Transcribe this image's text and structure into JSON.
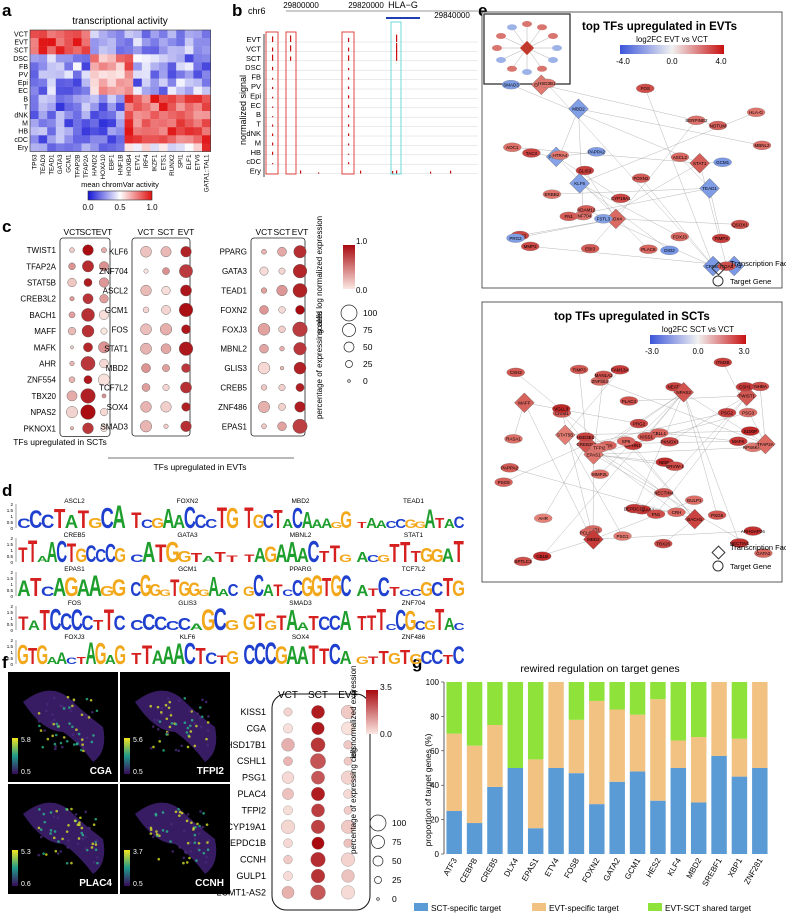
{
  "panel_letters": {
    "a": "a",
    "b": "b",
    "c": "c",
    "d": "d",
    "e": "e",
    "f": "f",
    "g": "g"
  },
  "panel_a": {
    "title": "transcriptional activity",
    "rows": [
      "VCT",
      "EVT",
      "SCT",
      "DSC",
      "FB",
      "PV",
      "Epi",
      "EC",
      "B",
      "T",
      "dNK",
      "M",
      "HB",
      "cDC",
      "Ery"
    ],
    "cols": [
      "TP63",
      "TEAD3",
      "TEAD1",
      "GATA3",
      "GCM1",
      "TFAP2B",
      "TFAP2A",
      "HAND2",
      "HOXA10",
      "EBF1",
      "HNF1B",
      "HOXB4",
      "ETV1",
      "IRF4",
      "IKZF1",
      "ETS1",
      "RUNX2",
      "SPI1",
      "ELF1",
      "ETV6",
      "GATA1::TAL1"
    ],
    "legend_title": "mean chromVar activity",
    "legend_ticks": [
      "0.0",
      "0.5",
      "1.0"
    ]
  },
  "panel_b": {
    "chrom": "chr6",
    "gene": "HLA−G",
    "coords": [
      "29800000",
      "29820000",
      "29840000"
    ],
    "ylabel": "normalized signal",
    "tracks": [
      "EVT",
      "VCT",
      "SCT",
      "DSC",
      "FB",
      "PV",
      "Epi",
      "EC",
      "B",
      "T",
      "dNK",
      "M",
      "HB",
      "cDC",
      "Ery"
    ]
  },
  "panel_c": {
    "group1": {
      "cols": [
        "VCT",
        "SCT",
        "EVT"
      ],
      "genes": [
        "TWIST1",
        "TFAP2A",
        "STAT5B",
        "CREB3L2",
        "BACH1",
        "MAFF",
        "MAFK",
        "AHR",
        "ZNF554",
        "TBX20",
        "NPAS2",
        "PKNOX1"
      ],
      "caption": "TFs upregulated in SCTs"
    },
    "group2": {
      "cols": [
        "VCT",
        "SCT",
        "EVT"
      ],
      "genes": [
        "KLF6",
        "ZNF704",
        "ASCL2",
        "GCM1",
        "FOS",
        "STAT1",
        "MBD2",
        "TCF7L2",
        "SOX4",
        "SMAD3"
      ]
    },
    "group3": {
      "cols": [
        "VCT",
        "SCT",
        "EVT"
      ],
      "genes": [
        "PPARG",
        "GATA3",
        "TEAD1",
        "FOXN2",
        "FOXJ3",
        "MBNL2",
        "GLIS3",
        "CREB5",
        "ZNF486",
        "EPAS1"
      ]
    },
    "caption_evt": "TFs upregulated in EVTs",
    "color_title": "scaled log normalized expression",
    "color_ticks": [
      "1.0",
      "0.0"
    ],
    "size_title": "percentage of expressing cells",
    "size_ticks": [
      "100",
      "75",
      "50",
      "25",
      "0"
    ]
  },
  "panel_d": {
    "motifs": [
      [
        "ASCL2",
        "FOXN2",
        "MBD2",
        "TEAD1"
      ],
      [
        "CREB5",
        "GATA3",
        "MBNL2",
        "STAT1"
      ],
      [
        "EPAS1",
        "GCM1",
        "PPARG",
        "TCF7L2"
      ],
      [
        "FOS",
        "GLIS3",
        "SMAD3",
        "ZNF704"
      ],
      [
        "FOXJ3",
        "KLF6",
        "SOX4",
        "ZNF486"
      ]
    ],
    "yticks": [
      "2",
      "1.5",
      "1",
      "0.5",
      "0"
    ]
  },
  "panel_e": {
    "top": {
      "title": "top TFs upregulated in EVTs",
      "legend_title": "log2FC EVT vs VCT",
      "legend_ticks": [
        "-4.0",
        "0.0",
        "4.0"
      ],
      "nodes": [
        "CYP19A1",
        "PPARG",
        "EPAS1",
        "TEAD1",
        "GATA3",
        "MBD2",
        "SOX4",
        "KLF6",
        "ZNF704",
        "STAT1",
        "GCM1",
        "FOS",
        "SMAD3",
        "CREB5",
        "GLIS3",
        "FOXJ3",
        "FOXN2",
        "MBNL2",
        "HLA-G",
        "PAPPA2",
        "ITGA5",
        "HTRA4",
        "DIO2",
        "FN1",
        "TIMP3",
        "ASCL2",
        "PLAC8",
        "LAIR2",
        "NOTUM",
        "PRG2",
        "ADAM12",
        "FSTL3",
        "MMP2",
        "QSOX1",
        "SERPINE2",
        "AOC1",
        "TAC3",
        "HSD3B1",
        "ERBB2",
        "EBI3"
      ]
    },
    "bottom": {
      "title": "top TFs upregulated in SCTs",
      "legend_title": "log2FC SCT vs VCT",
      "legend_ticks": [
        "-3.0",
        "0.0",
        "3.0"
      ],
      "nodes": [
        "SPTLC1",
        "ARHGAP26",
        "TIMP3",
        "STAT5B",
        "GULP1",
        "PKNOX1",
        "NEBL",
        "OPHN1",
        "TFPI",
        "LCMT1-AS2",
        "CBLL1",
        "RPS6KA5",
        "CREB3L2",
        "GRIP1",
        "FN1",
        "PCLCU2",
        "MAFF",
        "CRH",
        "MAFK",
        "AHR",
        "DEPDC1B",
        "HSD3B1",
        "NECTIN1",
        "FAM13A",
        "INHBA",
        "TBX20",
        "ITM2B",
        "CBLB",
        "NEAT1",
        "GATA2",
        "CRIM1",
        "MBD2",
        "VGLL3",
        "PRG2",
        "PAPPA2",
        "TWIST1",
        "EPAS1",
        "RASA1",
        "ZNF554",
        "CSH2",
        "BACH1",
        "S100P",
        "TFAP2A",
        "MAN1A2",
        "PSG3",
        "PSG1",
        "MMP2L",
        "NPAS2",
        "PSG6",
        "PSG9",
        "KISS1",
        "TFPI2",
        "ERVW-1",
        "PSG2",
        "PLAC4",
        "NECTIN4",
        "CSH1",
        "SP6"
      ]
    },
    "legend_tf": "Transcription Factor",
    "legend_gene": "Target Gene"
  },
  "panel_f": {
    "umaps": [
      {
        "gene": "CGA",
        "max": "5.8",
        "min": "0.5"
      },
      {
        "gene": "TFPI2",
        "max": "5.6",
        "min": "0.5"
      },
      {
        "gene": "PLAC4",
        "max": "5.3",
        "min": "0.6"
      },
      {
        "gene": "CCNH",
        "max": "3.7",
        "min": "0.5"
      }
    ],
    "cols": [
      "VCT",
      "SCT",
      "EVT"
    ],
    "genes": [
      "KISS1",
      "CGA",
      "HSD17B1",
      "CSHL1",
      "PSG1",
      "PLAC4",
      "TFPI2",
      "CYP19A1",
      "DEPDC1B",
      "CCNH",
      "GULP1",
      "LCMT1-AS2"
    ],
    "color_title": "log normalized expression",
    "color_ticks": [
      "3.5",
      "0.0"
    ],
    "size_title": "percentage of expressing cells",
    "size_ticks": [
      "100",
      "75",
      "50",
      "25",
      "0"
    ]
  },
  "chart_data": {
    "type": "bar",
    "title": "rewired regulation on target genes",
    "ylabel": "proportion of target genes (%)",
    "xlabel": "",
    "ylim": [
      0,
      100
    ],
    "yticks": [
      "0",
      "20",
      "40",
      "60",
      "80",
      "100"
    ],
    "categories": [
      "ATF3",
      "CEBPB",
      "CREB5",
      "DLX4",
      "EPAS1",
      "ETV4",
      "FOSB",
      "FOXN2",
      "GATA2",
      "GCM1",
      "HES2",
      "KLF4",
      "MBD2",
      "SREBF1",
      "XBP1",
      "ZNF281"
    ],
    "series": [
      {
        "name": "SCT-specific target",
        "color": "#5b9bd5",
        "values": [
          25,
          18,
          39,
          50,
          15,
          50,
          47,
          29,
          42,
          48,
          31,
          50,
          30,
          57,
          45,
          50
        ]
      },
      {
        "name": "EVT-specific target",
        "color": "#f2c283",
        "values": [
          45,
          45,
          36,
          0,
          40,
          50,
          31,
          60,
          42,
          33,
          59,
          16,
          38,
          43,
          22,
          50
        ]
      },
      {
        "name": "EVT-SCT shared target",
        "color": "#8ee23a",
        "values": [
          30,
          37,
          25,
          50,
          45,
          0,
          22,
          11,
          16,
          19,
          10,
          34,
          32,
          0,
          33,
          0
        ]
      }
    ],
    "legend": "bottom"
  }
}
